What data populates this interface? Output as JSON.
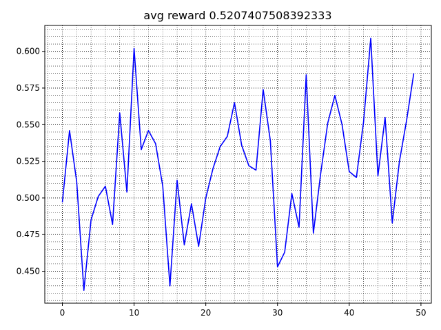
{
  "chart_data": {
    "type": "line",
    "title": "avg reward 0.5207407508392333",
    "xlabel": "",
    "ylabel": "",
    "xlim": [
      -2.45,
      51.45
    ],
    "ylim": [
      0.4282,
      0.6177
    ],
    "grid": "major and minor, dotted",
    "x_ticks": [
      0,
      10,
      20,
      30,
      40,
      50
    ],
    "x_tick_labels": [
      "0",
      "10",
      "20",
      "30",
      "40",
      "50"
    ],
    "y_ticks": [
      0.45,
      0.475,
      0.5,
      0.525,
      0.55,
      0.575,
      0.6
    ],
    "y_tick_labels": [
      "0.450",
      "0.475",
      "0.500",
      "0.525",
      "0.550",
      "0.575",
      "0.600"
    ],
    "series": [
      {
        "color": "#0000ff",
        "x": [
          0,
          1,
          2,
          3,
          4,
          5,
          6,
          7,
          8,
          9,
          10,
          11,
          12,
          13,
          14,
          15,
          16,
          17,
          18,
          19,
          20,
          21,
          22,
          23,
          24,
          25,
          26,
          27,
          28,
          29,
          30,
          31,
          32,
          33,
          34,
          35,
          36,
          37,
          38,
          39,
          40,
          41,
          42,
          43,
          44,
          45,
          46,
          47,
          48,
          49
        ],
        "values": [
          0.497,
          0.546,
          0.511,
          0.437,
          0.485,
          0.501,
          0.508,
          0.482,
          0.558,
          0.504,
          0.602,
          0.533,
          0.546,
          0.537,
          0.508,
          0.44,
          0.512,
          0.468,
          0.496,
          0.467,
          0.5,
          0.52,
          0.535,
          0.542,
          0.565,
          0.536,
          0.522,
          0.519,
          0.574,
          0.539,
          0.453,
          0.463,
          0.503,
          0.48,
          0.584,
          0.476,
          0.516,
          0.551,
          0.57,
          0.55,
          0.518,
          0.514,
          0.552,
          0.609,
          0.515,
          0.555,
          0.483,
          0.525,
          0.553,
          0.585
        ]
      }
    ]
  }
}
